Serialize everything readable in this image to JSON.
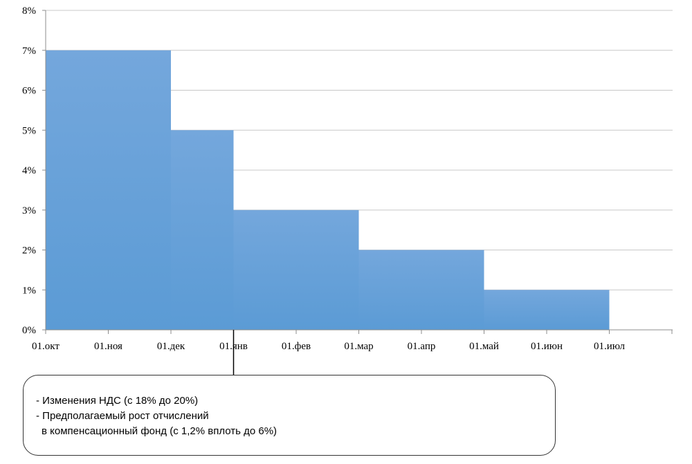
{
  "chart_data": {
    "type": "bar",
    "style": "step",
    "x_ticks": [
      "01.окт",
      "01.ноя",
      "01.дек",
      "01.янв",
      "01.фев",
      "01.мар",
      "01.апр",
      "01.май",
      "01.июн",
      "01.июл"
    ],
    "y_ticks": [
      "0%",
      "1%",
      "2%",
      "3%",
      "4%",
      "5%",
      "6%",
      "7%",
      "8%"
    ],
    "ylim": [
      0,
      8
    ],
    "y_unit": "%",
    "grid": true,
    "bar_color": "#5b9bd5",
    "segments": [
      {
        "start": "01.окт",
        "end": "01.дек",
        "value": 7
      },
      {
        "start": "01.дек",
        "end": "01.янв",
        "value": 5
      },
      {
        "start": "01.янв",
        "end": "01.мар",
        "value": 3
      },
      {
        "start": "01.мар",
        "end": "01.май",
        "value": 2
      },
      {
        "start": "01.май",
        "end": "01.июл",
        "value": 1
      }
    ],
    "pointer_at": "01.янв"
  },
  "callout": {
    "lines": [
      "- Изменения НДС (с 18% до 20%)",
      "- Предполагаемый рост отчислений",
      "в компенсационный фонд (с 1,2% вплоть до 6%)"
    ]
  }
}
